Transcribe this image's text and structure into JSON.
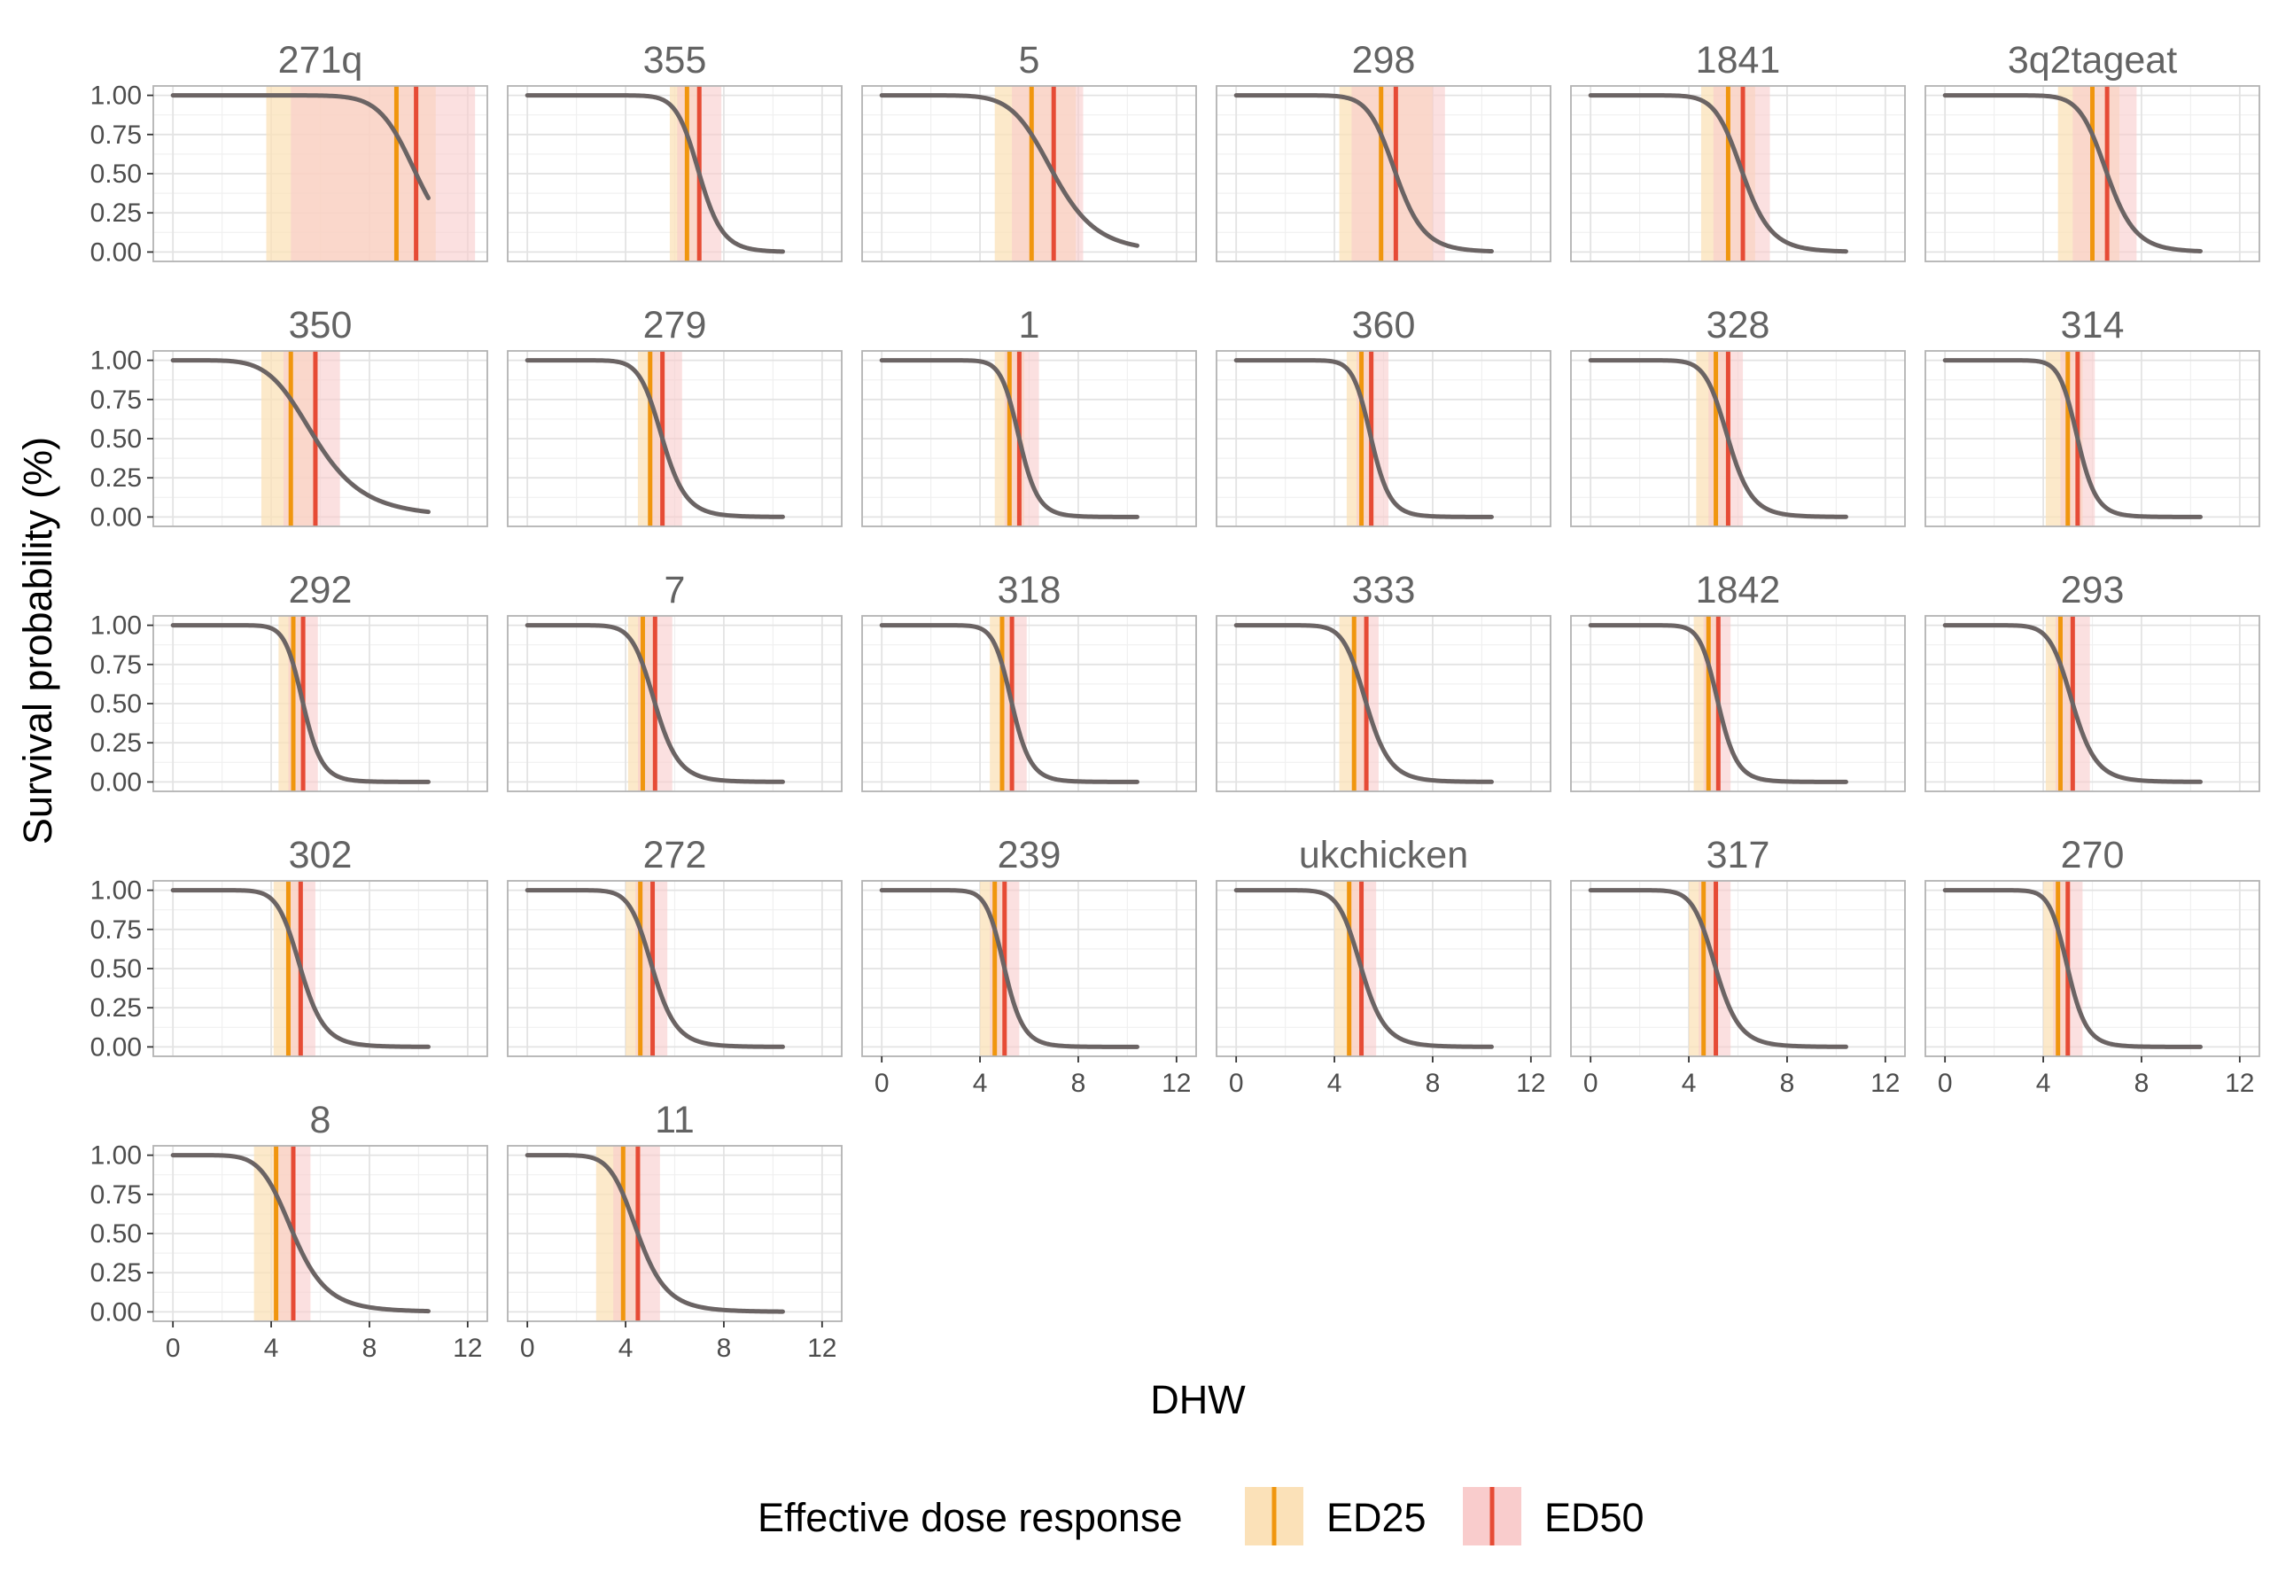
{
  "chart_data": {
    "type": "line",
    "xlabel": "DHW",
    "ylabel": "Survival probability (%)",
    "xlim": [
      -0.8,
      12.8
    ],
    "ylim": [
      -0.06,
      1.06
    ],
    "xticks": [
      0,
      4,
      8,
      12
    ],
    "yticks": [
      0,
      0.25,
      0.5,
      0.75,
      1.0
    ],
    "ytick_labels": [
      "0.00",
      "0.25",
      "0.50",
      "0.75",
      "1.00"
    ],
    "grid": true,
    "legend": {
      "title": "Effective dose response",
      "position": "bottom",
      "entries": [
        {
          "label": "ED25",
          "color": "#f0960e",
          "band_color": "#fbe1b8"
        },
        {
          "label": "ED50",
          "color": "#e64b35",
          "band_color": "#f9cccc"
        }
      ]
    },
    "curve": {
      "color": "#6b6464",
      "x_range": [
        0,
        10.4
      ]
    },
    "panels": [
      {
        "title": "271q",
        "ed25": 9.1,
        "ed25_lo": 3.8,
        "ed25_hi": 10.7,
        "ed50": 9.9,
        "ed50_lo": 4.8,
        "ed50_hi": 12.3
      },
      {
        "title": "355",
        "ed25": 6.5,
        "ed25_lo": 5.8,
        "ed25_hi": 7.1,
        "ed50": 7.0,
        "ed50_lo": 6.1,
        "ed50_hi": 7.9
      },
      {
        "title": "5",
        "ed25": 6.1,
        "ed25_lo": 4.6,
        "ed25_hi": 7.9,
        "ed50": 7.0,
        "ed50_lo": 5.3,
        "ed50_hi": 8.2
      },
      {
        "title": "298",
        "ed25": 5.9,
        "ed25_lo": 4.2,
        "ed25_hi": 8.0,
        "ed50": 6.5,
        "ed50_lo": 4.7,
        "ed50_hi": 8.5
      },
      {
        "title": "1841",
        "ed25": 5.6,
        "ed25_lo": 4.5,
        "ed25_hi": 6.7,
        "ed50": 6.2,
        "ed50_lo": 5.0,
        "ed50_hi": 7.3
      },
      {
        "title": "3q2tageat",
        "ed25": 6.0,
        "ed25_lo": 4.6,
        "ed25_hi": 7.1,
        "ed50": 6.6,
        "ed50_lo": 5.2,
        "ed50_hi": 7.8
      },
      {
        "title": "350",
        "ed25": 4.8,
        "ed25_lo": 3.6,
        "ed25_hi": 5.8,
        "ed50": 5.8,
        "ed50_lo": 4.5,
        "ed50_hi": 6.8
      },
      {
        "title": "279",
        "ed25": 5.0,
        "ed25_lo": 4.5,
        "ed25_hi": 5.6,
        "ed50": 5.5,
        "ed50_lo": 4.9,
        "ed50_hi": 6.3
      },
      {
        "title": "1",
        "ed25": 5.2,
        "ed25_lo": 4.6,
        "ed25_hi": 5.8,
        "ed50": 5.6,
        "ed50_lo": 5.0,
        "ed50_hi": 6.4
      },
      {
        "title": "360",
        "ed25": 5.1,
        "ed25_lo": 4.5,
        "ed25_hi": 5.6,
        "ed50": 5.5,
        "ed50_lo": 4.9,
        "ed50_hi": 6.2
      },
      {
        "title": "328",
        "ed25": 5.1,
        "ed25_lo": 4.3,
        "ed25_hi": 5.7,
        "ed50": 5.6,
        "ed50_lo": 4.8,
        "ed50_hi": 6.2
      },
      {
        "title": "314",
        "ed25": 5.0,
        "ed25_lo": 4.1,
        "ed25_hi": 5.6,
        "ed50": 5.4,
        "ed50_lo": 4.7,
        "ed50_hi": 6.1
      },
      {
        "title": "292",
        "ed25": 4.9,
        "ed25_lo": 4.3,
        "ed25_hi": 5.4,
        "ed50": 5.3,
        "ed50_lo": 4.7,
        "ed50_hi": 5.9
      },
      {
        "title": "7",
        "ed25": 4.7,
        "ed25_lo": 4.1,
        "ed25_hi": 5.2,
        "ed50": 5.2,
        "ed50_lo": 4.5,
        "ed50_hi": 5.9
      },
      {
        "title": "318",
        "ed25": 4.9,
        "ed25_lo": 4.4,
        "ed25_hi": 5.4,
        "ed50": 5.3,
        "ed50_lo": 4.8,
        "ed50_hi": 5.9
      },
      {
        "title": "333",
        "ed25": 4.8,
        "ed25_lo": 4.2,
        "ed25_hi": 5.3,
        "ed50": 5.3,
        "ed50_lo": 4.7,
        "ed50_hi": 5.8
      },
      {
        "title": "1842",
        "ed25": 4.8,
        "ed25_lo": 4.2,
        "ed25_hi": 5.2,
        "ed50": 5.2,
        "ed50_lo": 4.6,
        "ed50_hi": 5.7
      },
      {
        "title": "293",
        "ed25": 4.7,
        "ed25_lo": 4.1,
        "ed25_hi": 5.2,
        "ed50": 5.2,
        "ed50_lo": 4.5,
        "ed50_hi": 5.9
      },
      {
        "title": "302",
        "ed25": 4.7,
        "ed25_lo": 4.1,
        "ed25_hi": 5.3,
        "ed50": 5.2,
        "ed50_lo": 4.6,
        "ed50_hi": 5.8
      },
      {
        "title": "272",
        "ed25": 4.6,
        "ed25_lo": 4.0,
        "ed25_hi": 5.1,
        "ed50": 5.1,
        "ed50_lo": 4.4,
        "ed50_hi": 5.7
      },
      {
        "title": "239",
        "ed25": 4.6,
        "ed25_lo": 4.0,
        "ed25_hi": 5.1,
        "ed50": 5.0,
        "ed50_lo": 4.4,
        "ed50_hi": 5.6
      },
      {
        "title": "ukchicken",
        "ed25": 4.6,
        "ed25_lo": 4.0,
        "ed25_hi": 5.1,
        "ed50": 5.1,
        "ed50_lo": 4.5,
        "ed50_hi": 5.7
      },
      {
        "title": "317",
        "ed25": 4.6,
        "ed25_lo": 4.0,
        "ed25_hi": 5.1,
        "ed50": 5.1,
        "ed50_lo": 4.4,
        "ed50_hi": 5.7
      },
      {
        "title": "270",
        "ed25": 4.6,
        "ed25_lo": 4.0,
        "ed25_hi": 5.0,
        "ed50": 5.0,
        "ed50_lo": 4.4,
        "ed50_hi": 5.6
      },
      {
        "title": "8",
        "ed25": 4.2,
        "ed25_lo": 3.3,
        "ed25_hi": 4.9,
        "ed50": 4.9,
        "ed50_lo": 4.1,
        "ed50_hi": 5.6
      },
      {
        "title": "11",
        "ed25": 3.9,
        "ed25_lo": 2.8,
        "ed25_hi": 4.6,
        "ed50": 4.5,
        "ed50_lo": 3.5,
        "ed50_hi": 5.4
      }
    ]
  }
}
